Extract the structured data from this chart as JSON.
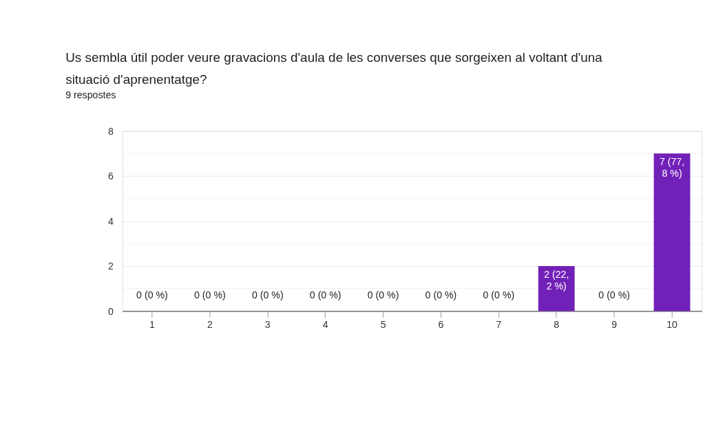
{
  "chart_data": {
    "type": "bar",
    "title": "Us sembla útil poder veure gravacions d'aula de les converses que sorgeixen al voltant d'una situació d'aprenentatge?",
    "subtitle": "9 respostes",
    "categories": [
      "1",
      "2",
      "3",
      "4",
      "5",
      "6",
      "7",
      "8",
      "9",
      "10"
    ],
    "values": [
      0,
      0,
      0,
      0,
      0,
      0,
      0,
      2,
      0,
      7
    ],
    "color": "#7221b8",
    "value_labels": [
      "0 (0 %)",
      "0 (0 %)",
      "0 (0 %)",
      "0 (0 %)",
      "0 (0 %)",
      "0 (0 %)",
      "0 (0 %)",
      "2 (22,2 %)",
      "0 (0 %)",
      "7 (77,8 %)"
    ],
    "ylim": [
      0,
      8
    ],
    "yticks": [
      0,
      {
        "value": 1,
        "label": null
      },
      2,
      {
        "value": 3,
        "label": null
      },
      4,
      {
        "value": 5,
        "label": null
      },
      6,
      {
        "value": 7,
        "label": null
      },
      8
    ],
    "grid": "y"
  }
}
